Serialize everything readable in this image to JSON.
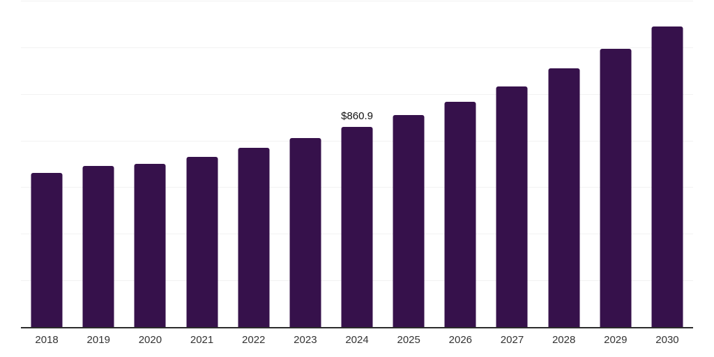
{
  "chart_data": {
    "type": "bar",
    "title": "",
    "xlabel": "",
    "ylabel": "",
    "categories": [
      "2018",
      "2019",
      "2020",
      "2021",
      "2022",
      "2023",
      "2024",
      "2025",
      "2026",
      "2027",
      "2028",
      "2029",
      "2030"
    ],
    "values": [
      664,
      694,
      703,
      734,
      773,
      814,
      860.9,
      912,
      970,
      1034,
      1112,
      1196,
      1291
    ],
    "annotations": [
      {
        "category": "2024",
        "text": "$860.9"
      }
    ],
    "ylim": [
      0,
      1400
    ],
    "grid_step": 200,
    "grid": true,
    "legend": false,
    "y_axis_labels_visible": false,
    "colors": {
      "bar": "#36114b",
      "axis": "#2b2b2b",
      "gridline": "#f2f2f2",
      "tick_label": "#333333",
      "data_label": "#111111",
      "background": "#ffffff"
    }
  }
}
